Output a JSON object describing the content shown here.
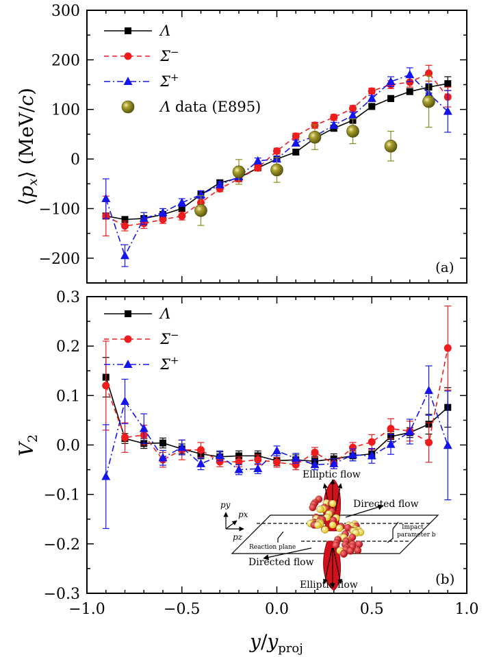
{
  "chart_data": [
    {
      "type": "line",
      "panel_label": "(a)",
      "ylabel": "⟨px⟩ (MeV/c)",
      "xlim": [
        -1.0,
        1.0
      ],
      "ylim": [
        -250,
        300
      ],
      "yticks": [
        -200,
        -100,
        0,
        100,
        200,
        300
      ],
      "ytick_labels": [
        "−200",
        "−100",
        "0",
        "100",
        "200",
        "300"
      ],
      "legend_position": "top-left",
      "series": [
        {
          "name": "Λ",
          "color": "#000000",
          "marker": "square",
          "line": "solid",
          "x": [
            -0.9,
            -0.8,
            -0.7,
            -0.6,
            -0.5,
            -0.4,
            -0.3,
            -0.2,
            -0.1,
            0.0,
            0.1,
            0.2,
            0.3,
            0.4,
            0.5,
            0.6,
            0.7,
            0.8,
            0.9
          ],
          "y": [
            -115,
            -122,
            -120,
            -112,
            -100,
            -72,
            -48,
            -38,
            -18,
            0,
            14,
            42,
            62,
            78,
            106,
            122,
            136,
            145,
            152
          ],
          "err": [
            6,
            6,
            6,
            6,
            6,
            6,
            6,
            6,
            6,
            6,
            6,
            6,
            6,
            6,
            6,
            6,
            6,
            12,
            14
          ]
        },
        {
          "name": "Σ⁻",
          "color": "#ee1c1c",
          "marker": "circle",
          "line": "dashed",
          "x": [
            -0.9,
            -0.8,
            -0.7,
            -0.6,
            -0.5,
            -0.4,
            -0.3,
            -0.2,
            -0.1,
            0.0,
            0.1,
            0.2,
            0.3,
            0.4,
            0.5,
            0.6,
            0.7,
            0.8,
            0.9
          ],
          "y": [
            -115,
            -135,
            -130,
            -122,
            -115,
            -88,
            -60,
            -40,
            -18,
            16,
            46,
            68,
            84,
            102,
            137,
            150,
            155,
            173,
            125
          ],
          "err": [
            40,
            10,
            10,
            8,
            8,
            8,
            6,
            6,
            6,
            6,
            6,
            6,
            6,
            6,
            6,
            8,
            10,
            16,
            20
          ]
        },
        {
          "name": "Σ⁺",
          "color": "#1414ee",
          "marker": "triangle",
          "line": "dashdot",
          "x": [
            -0.9,
            -0.8,
            -0.7,
            -0.6,
            -0.5,
            -0.4,
            -0.3,
            -0.2,
            -0.1,
            0.0,
            0.1,
            0.2,
            0.3,
            0.4,
            0.5,
            0.6,
            0.7,
            0.8,
            0.9
          ],
          "y": [
            -80,
            -195,
            -120,
            -108,
            -88,
            -72,
            -52,
            -36,
            -4,
            0,
            32,
            46,
            68,
            88,
            122,
            156,
            170,
            132,
            96
          ],
          "err": [
            40,
            22,
            12,
            8,
            8,
            8,
            6,
            6,
            6,
            6,
            6,
            6,
            6,
            6,
            6,
            10,
            14,
            20,
            42
          ]
        },
        {
          "name": "Λ data (E895)",
          "color": "#8a8a1a",
          "marker": "sphere",
          "line": "none",
          "x": [
            -0.4,
            -0.2,
            0.0,
            0.2,
            0.4,
            0.6,
            0.8
          ],
          "y": [
            -104,
            -26,
            -22,
            44,
            56,
            26,
            116
          ],
          "err": [
            30,
            25,
            25,
            25,
            25,
            30,
            52
          ]
        }
      ]
    },
    {
      "type": "line",
      "panel_label": "(b)",
      "xlabel": "y/yproj",
      "ylabel": "V2",
      "xlim": [
        -1.0,
        1.0
      ],
      "ylim": [
        -0.3,
        0.3
      ],
      "xticks": [
        -1.0,
        -0.5,
        0.0,
        0.5,
        1.0
      ],
      "xtick_labels": [
        "−1.0",
        "−0.5",
        "0.0",
        "0.5",
        "1.0"
      ],
      "yticks": [
        -0.3,
        -0.2,
        -0.1,
        0.0,
        0.1,
        0.2,
        0.3
      ],
      "ytick_labels": [
        "−0.3",
        "−0.2",
        "−0.1",
        "0.0",
        "0.1",
        "0.2",
        "0.3"
      ],
      "legend_position": "top-left",
      "series": [
        {
          "name": "Λ",
          "color": "#000000",
          "marker": "square",
          "line": "solid",
          "x": [
            -0.9,
            -0.8,
            -0.7,
            -0.6,
            -0.5,
            -0.4,
            -0.3,
            -0.2,
            -0.1,
            0.0,
            0.1,
            0.2,
            0.3,
            0.4,
            0.5,
            0.6,
            0.7,
            0.8,
            0.9
          ],
          "y": [
            0.137,
            0.013,
            0.003,
            0.004,
            -0.008,
            -0.018,
            -0.024,
            -0.022,
            -0.022,
            -0.032,
            -0.03,
            -0.033,
            -0.028,
            -0.022,
            -0.018,
            0.017,
            0.025,
            0.042,
            0.076
          ],
          "err": [
            0.04,
            0.01,
            0.01,
            0.01,
            0.01,
            0.01,
            0.01,
            0.01,
            0.01,
            0.01,
            0.01,
            0.01,
            0.01,
            0.01,
            0.01,
            0.01,
            0.01,
            0.02,
            0.04
          ]
        },
        {
          "name": "Σ⁻",
          "color": "#ee1c1c",
          "marker": "circle",
          "line": "dashed",
          "x": [
            -0.9,
            -0.8,
            -0.7,
            -0.6,
            -0.5,
            -0.4,
            -0.3,
            -0.2,
            -0.1,
            0.0,
            0.1,
            0.2,
            0.3,
            0.4,
            0.5,
            0.6,
            0.7,
            0.8,
            0.9
          ],
          "y": [
            0.12,
            0.015,
            0.02,
            -0.03,
            -0.01,
            -0.01,
            -0.034,
            -0.034,
            -0.03,
            -0.035,
            -0.04,
            -0.015,
            -0.038,
            -0.005,
            0.006,
            0.033,
            0.028,
            0.005,
            0.196
          ],
          "err": [
            0.09,
            0.03,
            0.02,
            0.015,
            0.02,
            0.015,
            0.01,
            0.01,
            0.01,
            0.01,
            0.01,
            0.01,
            0.01,
            0.01,
            0.015,
            0.02,
            0.02,
            0.04,
            0.085
          ]
        },
        {
          "name": "Σ⁺",
          "color": "#1414ee",
          "marker": "triangle",
          "line": "dashdot",
          "x": [
            -0.9,
            -0.8,
            -0.7,
            -0.6,
            -0.5,
            -0.4,
            -0.3,
            -0.2,
            -0.1,
            0.0,
            0.1,
            0.2,
            0.3,
            0.4,
            0.5,
            0.6,
            0.7,
            0.8,
            0.9
          ],
          "y": [
            -0.064,
            0.088,
            0.033,
            -0.026,
            -0.005,
            -0.038,
            -0.022,
            -0.05,
            -0.048,
            -0.012,
            -0.027,
            -0.04,
            -0.038,
            -0.02,
            -0.022,
            0.001,
            0.027,
            0.11,
            -0.001
          ],
          "err": [
            0.105,
            0.045,
            0.03,
            0.015,
            0.015,
            0.012,
            0.01,
            0.01,
            0.01,
            0.01,
            0.01,
            0.01,
            0.01,
            0.012,
            0.015,
            0.02,
            0.025,
            0.05,
            0.11
          ]
        }
      ]
    }
  ],
  "inset": {
    "labels": {
      "elliptic_top": "Elliptic flow",
      "elliptic_bottom": "Elliptic flow",
      "directed_right": "Directed flow",
      "directed_left": "Directed flow",
      "reaction_plane": "Reaction plane",
      "impact": "Impact",
      "parameter": "parameter b",
      "py": "py",
      "px": "px",
      "pz": "pz"
    },
    "colors": {
      "nucleus_red": "#e0202a",
      "nucleus_yellow": "#f6e022",
      "flow_red": "#d4101c"
    }
  }
}
